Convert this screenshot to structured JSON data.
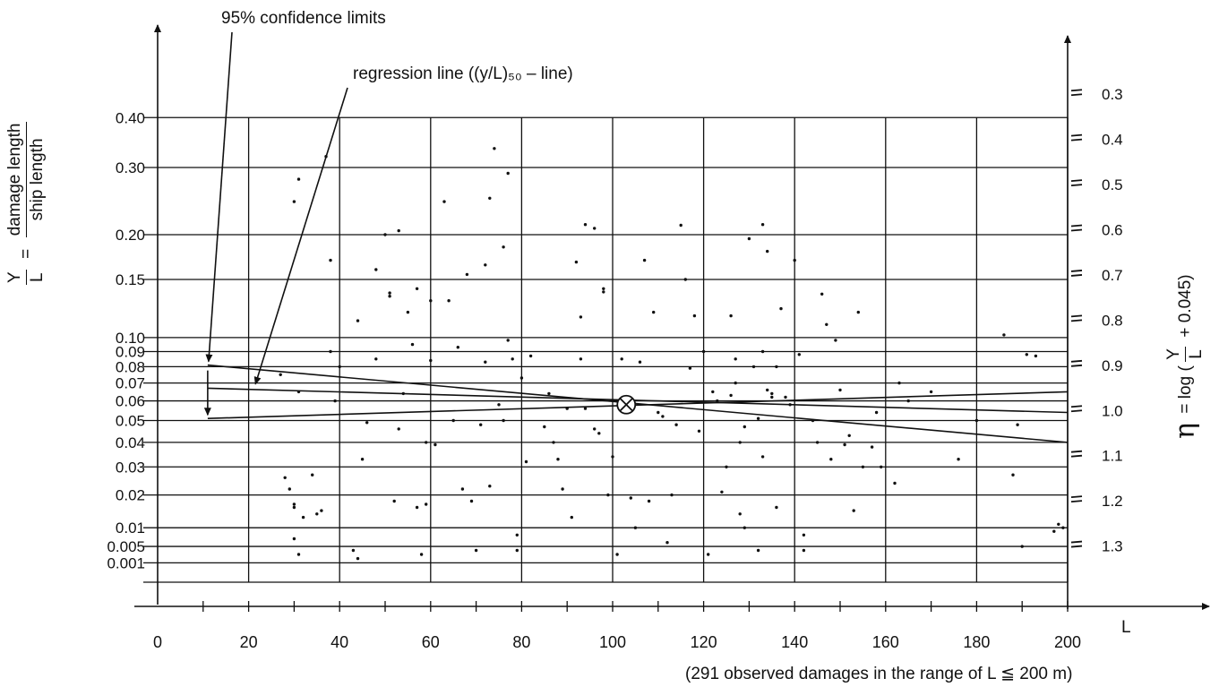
{
  "chart_data": {
    "type": "scatter",
    "title_annotation_1": "95% confidence limits",
    "title_annotation_2": "regression line ((y/L)₅₀ – line)",
    "xlabel": "L",
    "x_note": "(291 observed damages in the range of L ≦ 200 m)",
    "ylabel_left": {
      "lhs_num": "Y",
      "lhs_den": "L",
      "eq": "=",
      "rhs_num": "damage length",
      "rhs_den": "ship length"
    },
    "ylabel_right": {
      "symbol": "η",
      "text_pre": "= log (",
      "frac_num": "Y",
      "frac_den": "L",
      "text_post": "+ 0.045)"
    },
    "xlim": [
      0,
      200
    ],
    "x_ticks": [
      0,
      20,
      40,
      60,
      80,
      100,
      120,
      140,
      160,
      180,
      200
    ],
    "x_tick_labels": [
      "0",
      "20",
      "40",
      "60",
      "80",
      "100",
      "120",
      "140",
      "160",
      "180",
      "200"
    ],
    "eta_range": [
      0.25,
      1.4
    ],
    "y_left_ticks": [
      {
        "label": "0.40",
        "value": 0.4
      },
      {
        "label": "0.30",
        "value": 0.3
      },
      {
        "label": "0.20",
        "value": 0.2
      },
      {
        "label": "0.15",
        "value": 0.15
      },
      {
        "label": "0.10",
        "value": 0.1
      },
      {
        "label": "0.09",
        "value": 0.09
      },
      {
        "label": "0.08",
        "value": 0.08
      },
      {
        "label": "0.07",
        "value": 0.07
      },
      {
        "label": "0.06",
        "value": 0.06
      },
      {
        "label": "0.05",
        "value": 0.05
      },
      {
        "label": "0.04",
        "value": 0.04
      },
      {
        "label": "0.03",
        "value": 0.03
      },
      {
        "label": "0.02",
        "value": 0.02
      },
      {
        "label": "0.01",
        "value": 0.01
      },
      {
        "label": "0.005",
        "value": 0.005
      },
      {
        "label": "0.001",
        "value": 0.001
      }
    ],
    "y_right_ticks": [
      {
        "label": "0.3",
        "value": 0.3
      },
      {
        "label": "0.4",
        "value": 0.4
      },
      {
        "label": "0.5",
        "value": 0.5
      },
      {
        "label": "0.6",
        "value": 0.6
      },
      {
        "label": "0.7",
        "value": 0.7
      },
      {
        "label": "0.8",
        "value": 0.8
      },
      {
        "label": "0.9",
        "value": 0.9
      },
      {
        "label": "1.0",
        "value": 1.0
      },
      {
        "label": "1.1",
        "value": 1.1
      },
      {
        "label": "1.2",
        "value": 1.2
      },
      {
        "label": "1.3",
        "value": 1.3
      }
    ],
    "grid": true,
    "series": [
      {
        "name": "regression line",
        "style": "line",
        "x": [
          11,
          200
        ],
        "y": [
          0.067,
          0.054
        ]
      },
      {
        "name": "upper confidence limit",
        "style": "line",
        "x": [
          11,
          200
        ],
        "y": [
          0.081,
          0.04
        ]
      },
      {
        "name": "lower confidence limit",
        "style": "line",
        "x": [
          11,
          200
        ],
        "y": [
          0.051,
          0.065
        ]
      }
    ],
    "mean_point": {
      "x": 103,
      "y": 0.058
    },
    "points": [
      [
        27,
        0.075
      ],
      [
        28,
        0.026
      ],
      [
        29,
        0.022
      ],
      [
        30,
        0.017
      ],
      [
        30,
        0.016
      ],
      [
        31,
        0.28
      ],
      [
        30,
        0.245
      ],
      [
        32,
        0.013
      ],
      [
        31,
        0.065
      ],
      [
        30,
        0.007
      ],
      [
        31,
        0.003
      ],
      [
        34,
        0.027
      ],
      [
        35,
        0.014
      ],
      [
        36,
        0.015
      ],
      [
        37,
        0.32
      ],
      [
        38,
        0.17
      ],
      [
        38,
        0.09
      ],
      [
        39,
        0.06
      ],
      [
        40,
        0.08
      ],
      [
        43,
        0.004
      ],
      [
        44,
        0.002
      ],
      [
        44,
        0.113
      ],
      [
        45,
        0.033
      ],
      [
        46,
        0.049
      ],
      [
        48,
        0.085
      ],
      [
        48,
        0.16
      ],
      [
        50,
        0.2
      ],
      [
        51,
        0.137
      ],
      [
        51,
        0.134
      ],
      [
        53,
        0.205
      ],
      [
        52,
        0.018
      ],
      [
        53,
        0.046
      ],
      [
        54,
        0.064
      ],
      [
        55,
        0.12
      ],
      [
        56,
        0.095
      ],
      [
        57,
        0.141
      ],
      [
        57,
        0.016
      ],
      [
        58,
        0.003
      ],
      [
        59,
        0.04
      ],
      [
        59,
        0.017
      ],
      [
        60,
        0.13
      ],
      [
        60,
        0.084
      ],
      [
        61,
        0.039
      ],
      [
        63,
        0.245
      ],
      [
        64,
        0.13
      ],
      [
        65,
        0.05
      ],
      [
        66,
        0.093
      ],
      [
        67,
        0.022
      ],
      [
        68,
        0.155
      ],
      [
        69,
        0.018
      ],
      [
        70,
        0.004
      ],
      [
        71,
        0.048
      ],
      [
        72,
        0.165
      ],
      [
        72,
        0.083
      ],
      [
        73,
        0.023
      ],
      [
        73,
        0.25
      ],
      [
        74,
        0.335
      ],
      [
        75,
        0.058
      ],
      [
        76,
        0.05
      ],
      [
        76,
        0.185
      ],
      [
        77,
        0.29
      ],
      [
        77,
        0.098
      ],
      [
        78,
        0.085
      ],
      [
        79,
        0.004
      ],
      [
        79,
        0.008
      ],
      [
        80,
        0.073
      ],
      [
        81,
        0.032
      ],
      [
        82,
        0.087
      ],
      [
        85,
        0.047
      ],
      [
        86,
        0.064
      ],
      [
        87,
        0.04
      ],
      [
        88,
        0.033
      ],
      [
        89,
        0.022
      ],
      [
        90,
        0.056
      ],
      [
        91,
        0.013
      ],
      [
        92,
        0.168
      ],
      [
        93,
        0.116
      ],
      [
        93,
        0.085
      ],
      [
        94,
        0.056
      ],
      [
        94,
        0.213
      ],
      [
        96,
        0.208
      ],
      [
        96,
        0.046
      ],
      [
        97,
        0.044
      ],
      [
        98,
        0.141
      ],
      [
        98,
        0.138
      ],
      [
        99,
        0.02
      ],
      [
        100,
        0.034
      ],
      [
        101,
        0.003
      ],
      [
        102,
        0.085
      ],
      [
        104,
        0.019
      ],
      [
        105,
        0.01
      ],
      [
        106,
        0.083
      ],
      [
        107,
        0.17
      ],
      [
        108,
        0.018
      ],
      [
        109,
        0.12
      ],
      [
        110,
        0.054
      ],
      [
        111,
        0.052
      ],
      [
        112,
        0.006
      ],
      [
        113,
        0.02
      ],
      [
        114,
        0.048
      ],
      [
        115,
        0.212
      ],
      [
        116,
        0.15
      ],
      [
        117,
        0.079
      ],
      [
        118,
        0.117
      ],
      [
        119,
        0.045
      ],
      [
        120,
        0.09
      ],
      [
        121,
        0.003
      ],
      [
        122,
        0.065
      ],
      [
        123,
        0.06
      ],
      [
        124,
        0.021
      ],
      [
        125,
        0.03
      ],
      [
        126,
        0.117
      ],
      [
        126,
        0.063
      ],
      [
        127,
        0.085
      ],
      [
        127,
        0.07
      ],
      [
        128,
        0.04
      ],
      [
        128,
        0.014
      ],
      [
        129,
        0.047
      ],
      [
        129,
        0.01
      ],
      [
        130,
        0.195
      ],
      [
        131,
        0.08
      ],
      [
        132,
        0.051
      ],
      [
        132,
        0.004
      ],
      [
        133,
        0.213
      ],
      [
        133,
        0.09
      ],
      [
        133,
        0.034
      ],
      [
        134,
        0.18
      ],
      [
        134,
        0.066
      ],
      [
        135,
        0.064
      ],
      [
        135,
        0.062
      ],
      [
        136,
        0.08
      ],
      [
        136,
        0.016
      ],
      [
        137,
        0.123
      ],
      [
        138,
        0.062
      ],
      [
        139,
        0.058
      ],
      [
        140,
        0.17
      ],
      [
        141,
        0.088
      ],
      [
        142,
        0.004
      ],
      [
        142,
        0.008
      ],
      [
        144,
        0.05
      ],
      [
        145,
        0.04
      ],
      [
        146,
        0.136
      ],
      [
        147,
        0.11
      ],
      [
        148,
        0.033
      ],
      [
        149,
        0.098
      ],
      [
        150,
        0.066
      ],
      [
        151,
        0.039
      ],
      [
        152,
        0.043
      ],
      [
        153,
        0.015
      ],
      [
        154,
        0.12
      ],
      [
        155,
        0.03
      ],
      [
        157,
        0.038
      ],
      [
        158,
        0.054
      ],
      [
        159,
        0.03
      ],
      [
        162,
        0.024
      ],
      [
        163,
        0.07
      ],
      [
        165,
        0.06
      ],
      [
        170,
        0.065
      ],
      [
        176,
        0.033
      ],
      [
        180,
        0.05
      ],
      [
        186,
        0.102
      ],
      [
        188,
        0.027
      ],
      [
        189,
        0.048
      ],
      [
        190,
        0.005
      ],
      [
        191,
        0.088
      ],
      [
        193,
        0.087
      ],
      [
        197,
        0.009
      ],
      [
        198,
        0.011
      ],
      [
        199,
        0.01
      ]
    ]
  }
}
